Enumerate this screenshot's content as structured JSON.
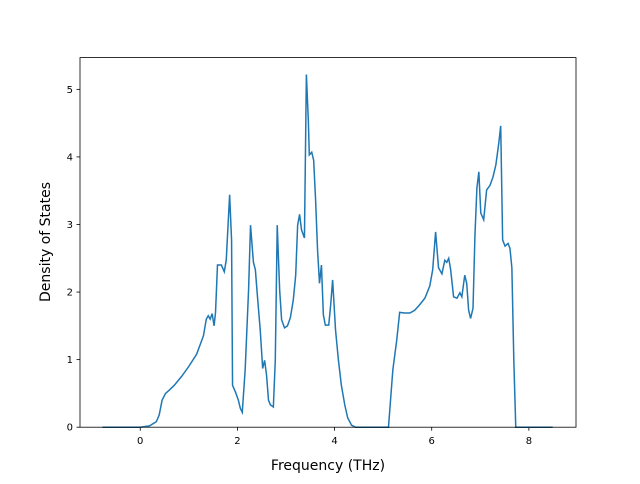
{
  "chart_data": {
    "type": "line",
    "x_label": "Frequency (THz)",
    "y_label": "Density of States",
    "xlim": [
      -1.24,
      8.97
    ],
    "ylim": [
      0,
      5.47
    ],
    "xticks": [
      0,
      2,
      4,
      6,
      8
    ],
    "yticks": [
      0,
      1,
      2,
      3,
      4,
      5
    ],
    "series": [
      {
        "color": "#1f77b4",
        "x": [
          -0.78,
          0,
          0.19,
          0.33,
          0.39,
          0.45,
          0.52,
          0.6,
          0.7,
          0.85,
          1.0,
          1.16,
          1.3,
          1.36,
          1.4,
          1.44,
          1.48,
          1.52,
          1.55,
          1.59,
          1.67,
          1.73,
          1.77,
          1.84,
          1.88,
          1.9,
          1.96,
          2.02,
          2.06,
          2.1,
          2.16,
          2.23,
          2.27,
          2.33,
          2.37,
          2.41,
          2.47,
          2.52,
          2.56,
          2.6,
          2.64,
          2.68,
          2.74,
          2.78,
          2.82,
          2.87,
          2.91,
          2.97,
          3.03,
          3.09,
          3.15,
          3.2,
          3.24,
          3.28,
          3.32,
          3.38,
          3.42,
          3.46,
          3.48,
          3.53,
          3.57,
          3.61,
          3.65,
          3.69,
          3.73,
          3.77,
          3.81,
          3.88,
          3.92,
          3.96,
          4.02,
          4.08,
          4.14,
          4.21,
          4.27,
          4.35,
          4.43,
          5.11,
          5.2,
          5.28,
          5.34,
          5.44,
          5.55,
          5.65,
          5.75,
          5.86,
          5.96,
          6.02,
          6.08,
          6.14,
          6.21,
          6.27,
          6.31,
          6.35,
          6.39,
          6.45,
          6.52,
          6.58,
          6.62,
          6.68,
          6.72,
          6.76,
          6.8,
          6.85,
          6.89,
          6.93,
          6.97,
          7.01,
          7.07,
          7.13,
          7.2,
          7.26,
          7.32,
          7.38,
          7.42,
          7.46,
          7.51,
          7.57,
          7.61,
          7.65,
          7.69,
          7.73,
          8.49
        ],
        "values": [
          0,
          0,
          0.02,
          0.08,
          0.18,
          0.4,
          0.5,
          0.55,
          0.62,
          0.75,
          0.9,
          1.08,
          1.35,
          1.6,
          1.65,
          1.6,
          1.68,
          1.5,
          1.7,
          2.4,
          2.4,
          2.3,
          2.47,
          3.44,
          2.77,
          0.62,
          0.52,
          0.4,
          0.28,
          0.22,
          0.85,
          2.03,
          2.99,
          2.44,
          2.33,
          1.96,
          1.44,
          0.87,
          0.99,
          0.77,
          0.4,
          0.33,
          0.3,
          0.99,
          2.99,
          2.03,
          1.59,
          1.47,
          1.5,
          1.62,
          1.88,
          2.25,
          2.99,
          3.15,
          2.92,
          2.8,
          5.22,
          4.54,
          4.03,
          4.07,
          3.95,
          3.36,
          2.62,
          2.13,
          2.4,
          1.66,
          1.51,
          1.51,
          1.81,
          2.18,
          1.44,
          0.99,
          0.62,
          0.33,
          0.14,
          0.03,
          0,
          0,
          0.85,
          1.29,
          1.7,
          1.69,
          1.69,
          1.73,
          1.81,
          1.91,
          2.09,
          2.33,
          2.89,
          2.36,
          2.27,
          2.47,
          2.44,
          2.5,
          2.33,
          1.93,
          1.91,
          1.99,
          1.93,
          2.25,
          2.13,
          1.73,
          1.61,
          1.76,
          2.84,
          3.54,
          3.78,
          3.17,
          3.07,
          3.51,
          3.58,
          3.7,
          3.88,
          4.2,
          4.46,
          2.77,
          2.68,
          2.72,
          2.65,
          2.36,
          0.99,
          0,
          0
        ]
      }
    ]
  }
}
